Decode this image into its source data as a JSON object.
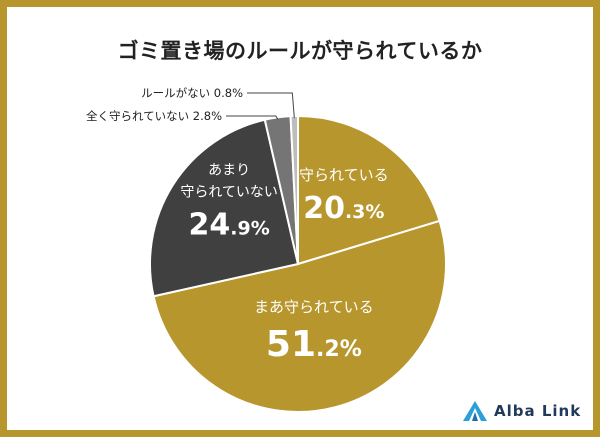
{
  "chart_data": {
    "type": "pie",
    "title": "ゴミ置き場のルールが守られているか",
    "slices": [
      {
        "label": "守られている",
        "value": 20.3,
        "value_major": "20",
        "value_minor": ".3%",
        "color": "#b8962e"
      },
      {
        "label": "まあ守られている",
        "value": 51.2,
        "value_major": "51",
        "value_minor": ".2%",
        "color": "#b8962e"
      },
      {
        "label_lines": [
          "あまり",
          "守られていない"
        ],
        "value": 24.9,
        "value_major": "24",
        "value_minor": ".9%",
        "color": "#404040"
      },
      {
        "label": "全く守られていない",
        "value": 2.8,
        "display": "全く守られていない 2.8%",
        "color": "#757575"
      },
      {
        "label": "ルールがない",
        "value": 0.8,
        "display": "ルールがない 0.8%",
        "color": "#bdbdbd"
      }
    ]
  },
  "brand": {
    "name": "Alba Link",
    "color": "#1f3a5a"
  }
}
